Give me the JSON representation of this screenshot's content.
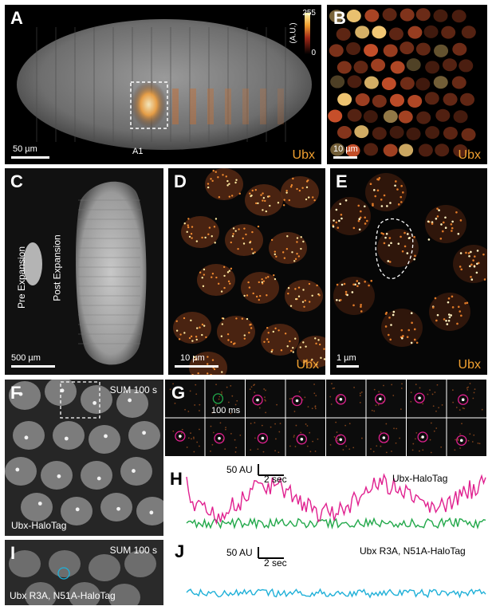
{
  "panel_a": {
    "label": "A",
    "scale_bar": "50 µm",
    "segment": "A1",
    "protein": "Ubx",
    "colorbar": {
      "max": "255",
      "min": "0",
      "unit": "(A.U.)"
    }
  },
  "panel_b": {
    "label": "B",
    "scale_bar": "10 µm",
    "protein": "Ubx"
  },
  "panel_c": {
    "label": "C",
    "scale_bar": "500 µm",
    "pre": "Pre Expansion",
    "post": "Post Expansion"
  },
  "panel_d": {
    "label": "D",
    "scale_bar": "10 µm",
    "protein": "Ubx"
  },
  "panel_e": {
    "label": "E",
    "scale_bar": "1 µm",
    "protein": "Ubx"
  },
  "panel_f": {
    "label": "F",
    "sum": "SUM 100 s",
    "construct": "Ubx-HaloTag"
  },
  "panel_g": {
    "label": "G",
    "frame_time": "100 ms"
  },
  "panel_h": {
    "label": "H",
    "scale_y": "50 AU",
    "scale_x": "2 sec",
    "construct": "Ubx-HaloTag",
    "colors": {
      "bound": "#e0208f",
      "background": "#22a84a"
    }
  },
  "panel_i": {
    "label": "I",
    "sum": "SUM 100 s",
    "construct": "Ubx R3A, N51A-HaloTag"
  },
  "panel_j": {
    "label": "J",
    "scale_y": "50 AU",
    "scale_x": "2 sec",
    "construct": "Ubx R3A, N51A-HaloTag",
    "colors": {
      "trace": "#1fb0d8"
    }
  }
}
